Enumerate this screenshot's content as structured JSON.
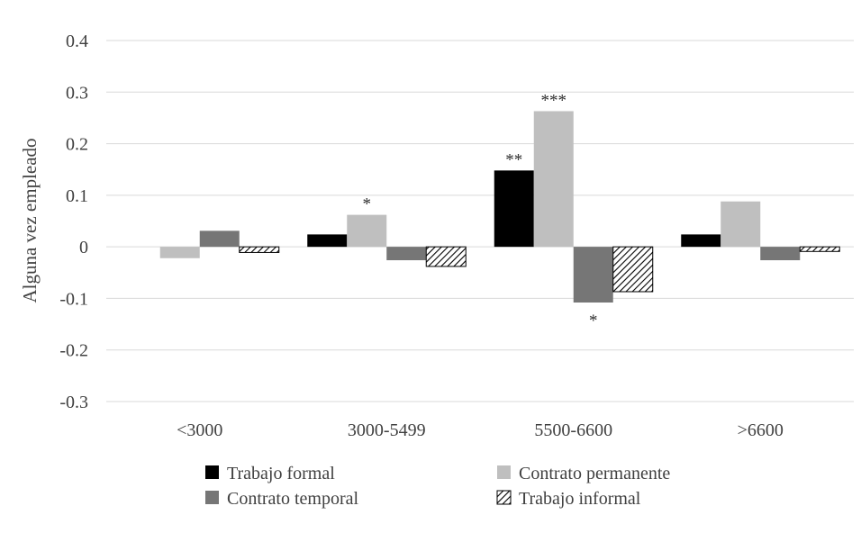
{
  "chart_data": {
    "type": "bar",
    "title": "",
    "xlabel": "",
    "ylabel": "Alguna vez empleado",
    "ylim": [
      -0.3,
      0.4
    ],
    "yticks": [
      0.4,
      0.3,
      0.2,
      0.1,
      0,
      -0.1,
      -0.2,
      -0.3
    ],
    "ytick_labels": [
      "0.4",
      "0.3",
      "0.2",
      "0.1",
      "0",
      "-0.1",
      "-0.2",
      "-0.3"
    ],
    "grid": true,
    "legend_position": "bottom",
    "categories": [
      "<3000",
      "3000-5499",
      "5500-6600",
      ">6600"
    ],
    "series": [
      {
        "name": "Trabajo formal",
        "color": "#000000",
        "pattern": "solid",
        "values": [
          null,
          0.024,
          0.148,
          0.024
        ],
        "annotations": [
          "",
          "",
          "**",
          ""
        ]
      },
      {
        "name": "Contrato permanente",
        "color": "#bfbfbf",
        "pattern": "solid",
        "values": [
          -0.022,
          0.062,
          0.263,
          0.088
        ],
        "annotations": [
          "",
          "*",
          "***",
          ""
        ]
      },
      {
        "name": "Contrato temporal",
        "color": "#767676",
        "pattern": "solid",
        "values": [
          0.031,
          -0.026,
          -0.108,
          -0.026
        ],
        "annotations": [
          "",
          "",
          "*",
          ""
        ]
      },
      {
        "name": "Trabajo informal",
        "color": "#000000",
        "pattern": "hatch",
        "values": [
          -0.011,
          -0.038,
          -0.087,
          -0.009
        ],
        "annotations": [
          "",
          "",
          "",
          ""
        ]
      }
    ]
  }
}
